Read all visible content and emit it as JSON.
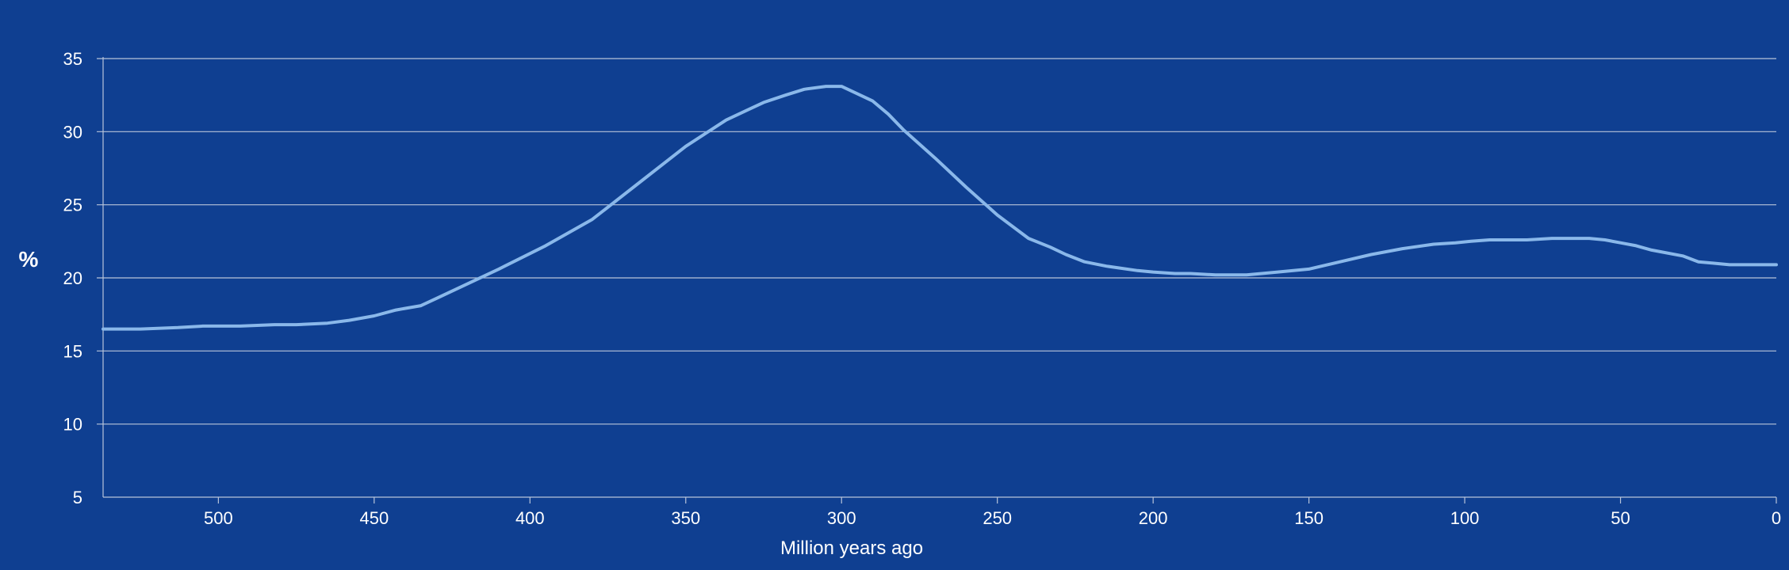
{
  "chart_data": {
    "type": "line",
    "title": "",
    "xlabel": "Million years ago",
    "ylabel": "%",
    "xlim": [
      537,
      0
    ],
    "ylim": [
      5,
      35
    ],
    "x_ticks": [
      "500",
      "450",
      "400",
      "350",
      "300",
      "250",
      "200",
      "150",
      "100",
      "50",
      "0"
    ],
    "y_ticks": [
      "35",
      "30",
      "25",
      "20",
      "15",
      "10",
      "5"
    ],
    "grid": true,
    "colors": {
      "background": "#0f3f91",
      "line": "#8ab8ea",
      "grid": "#b8c4da",
      "text": "#ffffff"
    },
    "series": [
      {
        "x": [
          537,
          525,
          513,
          505,
          493,
          482,
          475,
          465,
          458,
          450,
          443,
          435,
          430,
          420,
          410,
          395,
          380,
          365,
          350,
          337,
          330,
          325,
          318,
          312,
          305,
          300,
          295,
          290,
          285,
          280,
          270,
          260,
          250,
          240,
          233,
          228,
          222,
          215,
          205,
          200,
          193,
          188,
          180,
          170,
          160,
          150,
          140,
          130,
          120,
          110,
          103,
          98,
          92,
          80,
          72,
          60,
          55,
          50,
          45,
          40,
          30,
          25,
          20,
          15,
          10,
          0
        ],
        "y": [
          16.5,
          16.5,
          16.6,
          16.7,
          16.7,
          16.8,
          16.8,
          16.9,
          17.1,
          17.4,
          17.8,
          18.1,
          18.6,
          19.6,
          20.6,
          22.2,
          24.0,
          26.5,
          29.0,
          30.8,
          31.5,
          32.0,
          32.5,
          32.9,
          33.1,
          33.1,
          32.6,
          32.1,
          31.2,
          30.1,
          28.2,
          26.2,
          24.3,
          22.7,
          22.1,
          21.6,
          21.1,
          20.8,
          20.5,
          20.4,
          20.3,
          20.3,
          20.2,
          20.2,
          20.4,
          20.6,
          21.1,
          21.6,
          22.0,
          22.3,
          22.4,
          22.5,
          22.6,
          22.6,
          22.7,
          22.7,
          22.6,
          22.4,
          22.2,
          21.9,
          21.5,
          21.1,
          21.0,
          20.9,
          20.9,
          20.9
        ]
      }
    ]
  }
}
